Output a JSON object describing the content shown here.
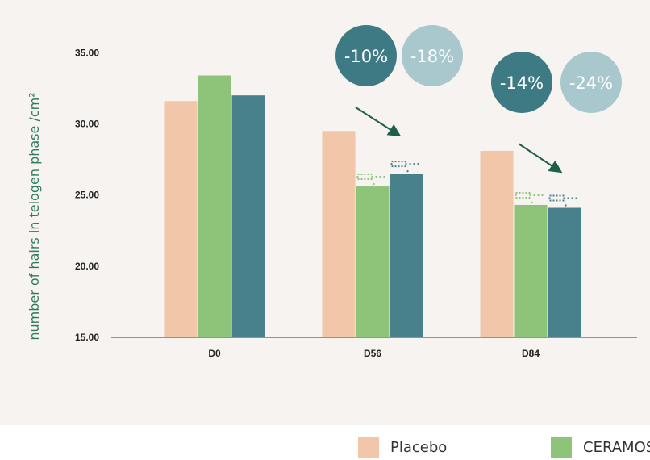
{
  "chart_data": {
    "type": "bar",
    "ylabel": "number of hairs in telogen  phase /cm²",
    "ylim": [
      15,
      37
    ],
    "yticks": [
      "15.00",
      "20.00",
      "25.00",
      "30.00",
      "35.00"
    ],
    "categories": [
      "D0",
      "D56",
      "D84"
    ],
    "series": [
      {
        "name": "Placebo",
        "color": "#f2c6a8",
        "values": [
          31.6,
          29.5,
          28.1
        ]
      },
      {
        "name": "CERAMOSIDES",
        "color": "#8dc47a",
        "values": [
          33.4,
          25.6,
          24.3
        ]
      },
      {
        "color": "#48818c",
        "values": [
          32.0,
          26.5,
          24.1
        ]
      }
    ],
    "annotations": [
      {
        "category": "D56",
        "labels": [
          "-10%",
          "-18%"
        ],
        "colors": [
          "#3e7a84",
          "#a8c8ce"
        ]
      },
      {
        "category": "D84",
        "labels": [
          "-14%",
          "-24%"
        ],
        "colors": [
          "#3e7a84",
          "#a8c8ce"
        ]
      }
    ],
    "legend_visible": [
      "Placebo",
      "CERAMOS"
    ]
  }
}
